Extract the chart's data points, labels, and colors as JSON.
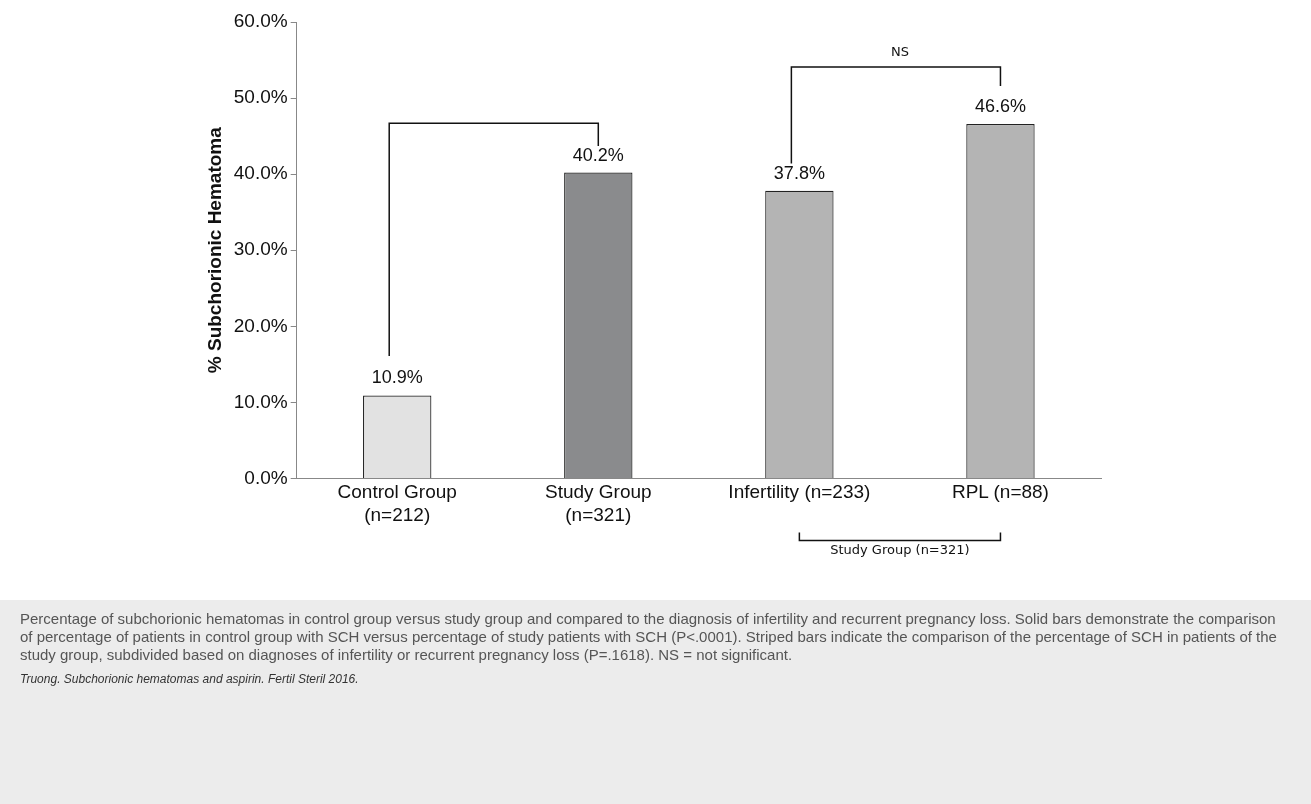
{
  "chart_data": {
    "type": "bar",
    "ylabel": "% Subchorionic Hematoma",
    "categories": [
      "Control Group\n(n=212)",
      "Study Group\n(n=321)",
      "Infertility (n=233)",
      "RPL (n=88)"
    ],
    "values": [
      10.9,
      40.2,
      37.8,
      46.6
    ],
    "colors": [
      "#e2e2e2",
      "#8a8b8d",
      "#b4b4b4",
      "#b4b4b4"
    ],
    "value_labels": [
      "10.9%",
      "40.2%",
      "37.8%",
      "46.6%"
    ],
    "ylim": [
      0,
      60
    ],
    "yticks": [
      {
        "value": 0,
        "label": "0.0%"
      },
      {
        "value": 10,
        "label": "10.0%"
      },
      {
        "value": 20,
        "label": "20.0%"
      },
      {
        "value": 30,
        "label": "30.0%"
      },
      {
        "value": 40,
        "label": "40.0%"
      },
      {
        "value": 50,
        "label": "50.0%"
      },
      {
        "value": 60,
        "label": "60.0%"
      }
    ],
    "grid": false,
    "legend": false,
    "annotations": [
      "NS",
      "Study Group (n=321)",
      "Percentage of subchorionic hematomas in control group versus study group and compared to the diagnosis of infertility and recurrent pregnancy loss. Solid bars demonstrate the comparison of percentage of patients in control group with SCH versus percentage of study patients with SCH (P<.0001). Striped bars indicate the comparison of the percentage of SCH in patients of the study group, subdivided based on diagnoses of infertility or recurrent pregnancy loss (P=.1618). NS = not significant.",
      "Truong. Subchorionic hematomas and aspirin. Fertil Steril 2016."
    ]
  }
}
